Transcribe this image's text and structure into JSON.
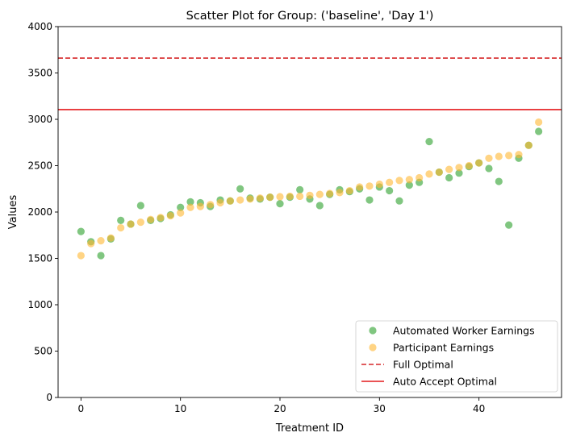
{
  "chart_data": {
    "type": "scatter",
    "title": "Scatter Plot for Group: ('baseline', 'Day 1')",
    "xlabel": "Treatment ID",
    "ylabel": "Values",
    "xlim": [
      -2.3,
      48.3
    ],
    "ylim": [
      0,
      4000
    ],
    "x_ticks": [
      0,
      10,
      20,
      30,
      40
    ],
    "y_ticks": [
      0,
      500,
      1000,
      1500,
      2000,
      2500,
      3000,
      3500,
      4000
    ],
    "grid": false,
    "legend_position": "lower-right",
    "series": [
      {
        "name": "Automated Worker Earnings",
        "kind": "scatter",
        "color": "#2ca02c",
        "alpha": 0.6,
        "x": [
          0,
          1,
          2,
          3,
          4,
          5,
          6,
          7,
          8,
          9,
          10,
          11,
          12,
          13,
          14,
          15,
          16,
          17,
          18,
          19,
          20,
          21,
          22,
          23,
          24,
          25,
          26,
          27,
          28,
          29,
          30,
          31,
          32,
          33,
          34,
          35,
          36,
          37,
          38,
          39,
          40,
          41,
          42,
          43,
          44,
          45,
          46
        ],
        "y": [
          1790,
          1680,
          1530,
          1710,
          1910,
          1870,
          2070,
          1910,
          1930,
          1970,
          2050,
          2110,
          2100,
          2060,
          2130,
          2120,
          2250,
          2150,
          2140,
          2160,
          2090,
          2160,
          2240,
          2140,
          2070,
          2190,
          2240,
          2220,
          2250,
          2130,
          2270,
          2230,
          2120,
          2290,
          2320,
          2760,
          2430,
          2370,
          2420,
          2490,
          2530,
          2470,
          2330,
          1860,
          2580,
          2720,
          2870
        ]
      },
      {
        "name": "Participant Earnings",
        "kind": "scatter",
        "color": "#ffb732",
        "alpha": 0.6,
        "x": [
          0,
          1,
          2,
          3,
          4,
          5,
          6,
          7,
          8,
          9,
          10,
          11,
          12,
          13,
          14,
          15,
          16,
          17,
          18,
          19,
          20,
          21,
          22,
          23,
          24,
          25,
          26,
          27,
          28,
          29,
          30,
          31,
          32,
          33,
          34,
          35,
          36,
          37,
          38,
          39,
          40,
          41,
          42,
          43,
          44,
          45,
          46
        ],
        "y": [
          1530,
          1660,
          1690,
          1720,
          1830,
          1870,
          1890,
          1920,
          1940,
          1960,
          1990,
          2050,
          2060,
          2080,
          2100,
          2120,
          2130,
          2140,
          2150,
          2160,
          2165,
          2170,
          2170,
          2180,
          2190,
          2200,
          2210,
          2230,
          2270,
          2280,
          2300,
          2320,
          2340,
          2350,
          2370,
          2410,
          2430,
          2460,
          2480,
          2500,
          2530,
          2580,
          2600,
          2610,
          2620,
          2720,
          2970
        ]
      },
      {
        "name": "Full Optimal",
        "kind": "hline",
        "y": 3660,
        "color": "#d62728",
        "style": "dashed"
      },
      {
        "name": "Auto Accept Optimal",
        "kind": "hline",
        "y": 3105,
        "color": "#e41a1c",
        "style": "solid"
      }
    ]
  }
}
